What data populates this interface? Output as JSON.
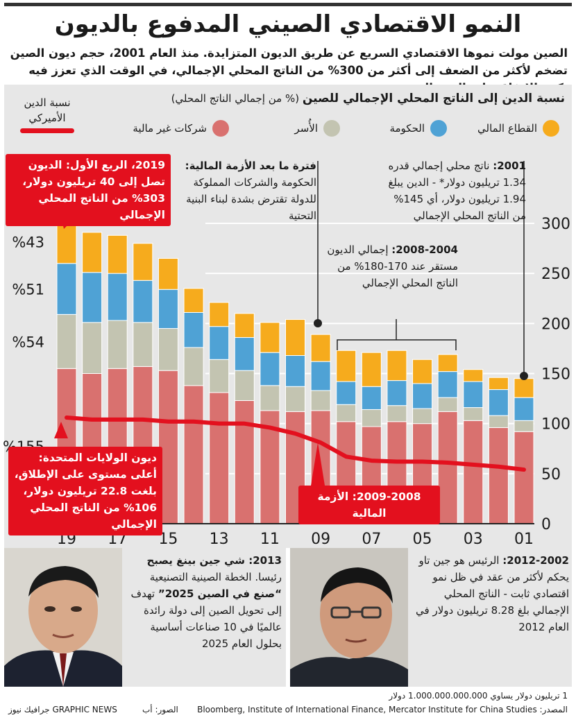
{
  "title": "النمو الاقتصادي الصيني المدفوع بالديون",
  "intro": "الصين مولت نموها الاقتصادي السريع عن طريق الديون المتزايدة. منذ العام 2001، حجم ديون الصين تضخم لأكثر من الضعف إلى أكثر من 300% من الناتج المحلي الإجمالي، في الوقت الذي تعزز فيه بكين الإنفاق على البنية التحتية",
  "chart_title_bold": "نسبة الدين إلى الناتج المحلي الإجمالي للصين",
  "chart_title_rest": "(% من إجمالي الناتج المحلي)",
  "legend": {
    "financial": "القطاع المالي",
    "government": "الحكومة",
    "households": "الأُسر",
    "corporate": "شركات غير مالية",
    "us_debt_line1": "نسبة الدين",
    "us_debt_line2": "الأميركي"
  },
  "colors": {
    "financial": "#f6ab1d",
    "government": "#4fa2d5",
    "households": "#c3c4b1",
    "corporate": "#d9716f",
    "us_line": "#e3101e",
    "panel": "#e7e7e7",
    "grid": "#ffffff"
  },
  "notes": {
    "n2001_bold": "2001:",
    "n2001_text": "ناتج محلي إجمالي قدره 1.34 تريليون دولار* - الدين يبلغ 1.94 تريليون دولار، أي 145% من الناتج المحلي الإجمالي",
    "n2004_bold": "2008-2004:",
    "n2004_text": "إجمالي الديون مستقر عند 170-180% من الناتج المحلي الإجمالي",
    "post_crisis_bold": "فترة ما بعد الأزمة المالية:",
    "post_crisis_text": "الحكومة والشركات المملوكة للدولة تقترض بشدة لبناء البنية التحتية",
    "q1_2019": "2019، الربع الأول: الديون تصل إلى 40 تريليون دولار، 303% من الناتج المحلي الإجمالي",
    "us_debt": "ديون الولايات المتحدة: أعلى مستوى على الإطلاق، بلغت 22.8 تريليون دولار، 106% من الناتج المحلي الإجمالي",
    "crisis": "2009-2008: الأزمة المالية"
  },
  "chart_data": {
    "type": "bar",
    "stacked": true,
    "title": "نسبة الدين إلى الناتج المحلي الإجمالي للصين",
    "ylabel": "% من إجمالي الناتج المحلي",
    "ylim": [
      0,
      300
    ],
    "yticks": [
      "0",
      "50",
      "100",
      "150",
      "200",
      "250",
      "300"
    ],
    "x_tick_labels": [
      "01",
      "03",
      "05",
      "07",
      "09",
      "11",
      "13",
      "15",
      "17",
      "19"
    ],
    "categories": [
      "2001",
      "2002",
      "2003",
      "2004",
      "2005",
      "2006",
      "2007",
      "2008",
      "2009",
      "2010",
      "2011",
      "2012",
      "2013",
      "2014",
      "2015",
      "2016",
      "2017",
      "2018",
      "2019"
    ],
    "series": [
      {
        "name": "شركات غير مالية",
        "key": "corporate",
        "values": [
          92,
          96,
          103,
          112,
          100,
          102,
          97,
          102,
          113,
          112,
          113,
          123,
          131,
          138,
          153,
          157,
          155,
          150,
          155
        ]
      },
      {
        "name": "الأُسر",
        "key": "households",
        "values": [
          11,
          12,
          13,
          14,
          15,
          16,
          17,
          17,
          20,
          25,
          25,
          30,
          33,
          38,
          42,
          44,
          48,
          51,
          54
        ]
      },
      {
        "name": "الحكومة",
        "key": "government",
        "values": [
          23,
          26,
          26,
          26,
          25,
          25,
          23,
          23,
          29,
          31,
          33,
          33,
          33,
          35,
          39,
          42,
          47,
          50,
          51
        ]
      },
      {
        "name": "القطاع المالي",
        "key": "financial",
        "values": [
          19,
          12,
          12,
          17,
          24,
          30,
          34,
          31,
          27,
          36,
          30,
          24,
          24,
          24,
          31,
          37,
          38,
          40,
          43
        ]
      }
    ],
    "totals": [
      145,
      146,
      154,
      169,
      164,
      173,
      171,
      173,
      189,
      204,
      201,
      210,
      221,
      235,
      265,
      280,
      288,
      291,
      303
    ],
    "us_debt_series": {
      "name": "نسبة الدين الأميركي",
      "values": [
        54,
        57,
        59,
        61,
        62,
        62,
        63,
        67,
        81,
        90,
        96,
        100,
        100,
        102,
        102,
        104,
        104,
        104,
        106
      ]
    },
    "right_side_labels": [
      "%43",
      "%51",
      "%54",
      "%155"
    ]
  },
  "bios": {
    "xi_bold": "2013: شي جين بينغ يصبح",
    "xi_text": "رئيسا. الخطة الصينية التصنيعية",
    "xi_quote": "“صنع في الصين 2025”",
    "xi_text2": "تهدف إلى تحويل الصين إلى دولة رائدة عالميًا في 10 صناعات أساسية بحلول العام 2025",
    "hu_bold": "2012-2002:",
    "hu_text": "الرئيس هو جين تاو يحكم لأكثر من عقد في ظل نمو اقتصادي ثابت - الناتج المحلي الإجمالي بلغ 8.28 تريليون دولار في العام 2012"
  },
  "footer": {
    "footnote": "1 تريليون دولار يساوي 1.000.000.000.000 دولار",
    "source": "المصدر: Bloomberg, Institute of International Finance, Mercator Institute for China Studies",
    "photos": "الصور: أب",
    "brand": "GRAPHIC NEWS جرافيك نيوز"
  }
}
